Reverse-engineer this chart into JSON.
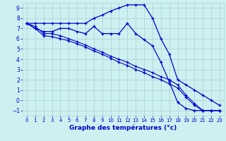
{
  "xlabel": "Graphe des températures (°c)",
  "bg_color": "#cff0f0",
  "grid_color": "#a8d8d8",
  "line_color": "#0000cc",
  "xlim": [
    -0.5,
    23.5
  ],
  "ylim": [
    -1.5,
    9.5
  ],
  "xticks": [
    0,
    1,
    2,
    3,
    4,
    5,
    6,
    7,
    8,
    9,
    10,
    11,
    12,
    13,
    14,
    15,
    16,
    17,
    18,
    19,
    20,
    21,
    22,
    23
  ],
  "yticks": [
    -1,
    0,
    1,
    2,
    3,
    4,
    5,
    6,
    7,
    8,
    9
  ],
  "curve1_x": [
    0,
    1,
    2,
    3,
    4,
    5,
    6,
    7,
    8,
    9,
    10,
    11,
    12,
    13,
    14,
    15,
    16,
    17,
    18,
    19,
    20,
    21,
    22,
    23
  ],
  "curve1_y": [
    7.5,
    7.5,
    7.5,
    7.5,
    7.5,
    7.5,
    7.5,
    7.5,
    8.0,
    8.3,
    8.7,
    9.0,
    9.3,
    9.3,
    9.3,
    8.0,
    6.0,
    4.5,
    2.0,
    1.5,
    1.0,
    0.5,
    0.0,
    -0.5
  ],
  "curve2_x": [
    0,
    1,
    2,
    3,
    4,
    5,
    6,
    7,
    8,
    9,
    10,
    11,
    12,
    13,
    14,
    15,
    16,
    17,
    18,
    19,
    20,
    21,
    22,
    23
  ],
  "curve2_y": [
    7.5,
    7.0,
    6.7,
    6.7,
    7.0,
    7.0,
    6.7,
    6.5,
    7.2,
    6.5,
    6.5,
    6.5,
    7.5,
    6.5,
    5.9,
    5.3,
    3.7,
    1.8,
    -0.2,
    -0.8,
    -1.0,
    -1.0,
    -1.0,
    -1.0
  ],
  "curve3_x": [
    0,
    1,
    2,
    3,
    4,
    5,
    6,
    7,
    8,
    9,
    10,
    11,
    12,
    13,
    14,
    15,
    16,
    17,
    18,
    19,
    20,
    21,
    22,
    23
  ],
  "curve3_y": [
    7.5,
    7.2,
    6.5,
    6.5,
    6.3,
    6.0,
    5.7,
    5.4,
    5.0,
    4.7,
    4.3,
    4.0,
    3.7,
    3.3,
    3.0,
    2.7,
    2.3,
    2.0,
    1.5,
    0.5,
    -0.3,
    -1.0,
    -1.0,
    -1.0
  ],
  "curve4_x": [
    0,
    1,
    2,
    3,
    4,
    5,
    6,
    7,
    8,
    9,
    10,
    11,
    12,
    13,
    14,
    15,
    16,
    17,
    18,
    19,
    20,
    21,
    22,
    23
  ],
  "curve4_y": [
    7.5,
    7.0,
    6.3,
    6.2,
    6.0,
    5.8,
    5.5,
    5.2,
    4.8,
    4.5,
    4.1,
    3.7,
    3.4,
    3.0,
    2.7,
    2.3,
    2.0,
    1.6,
    1.2,
    0.3,
    -0.5,
    -1.0,
    -1.0,
    -1.0
  ]
}
